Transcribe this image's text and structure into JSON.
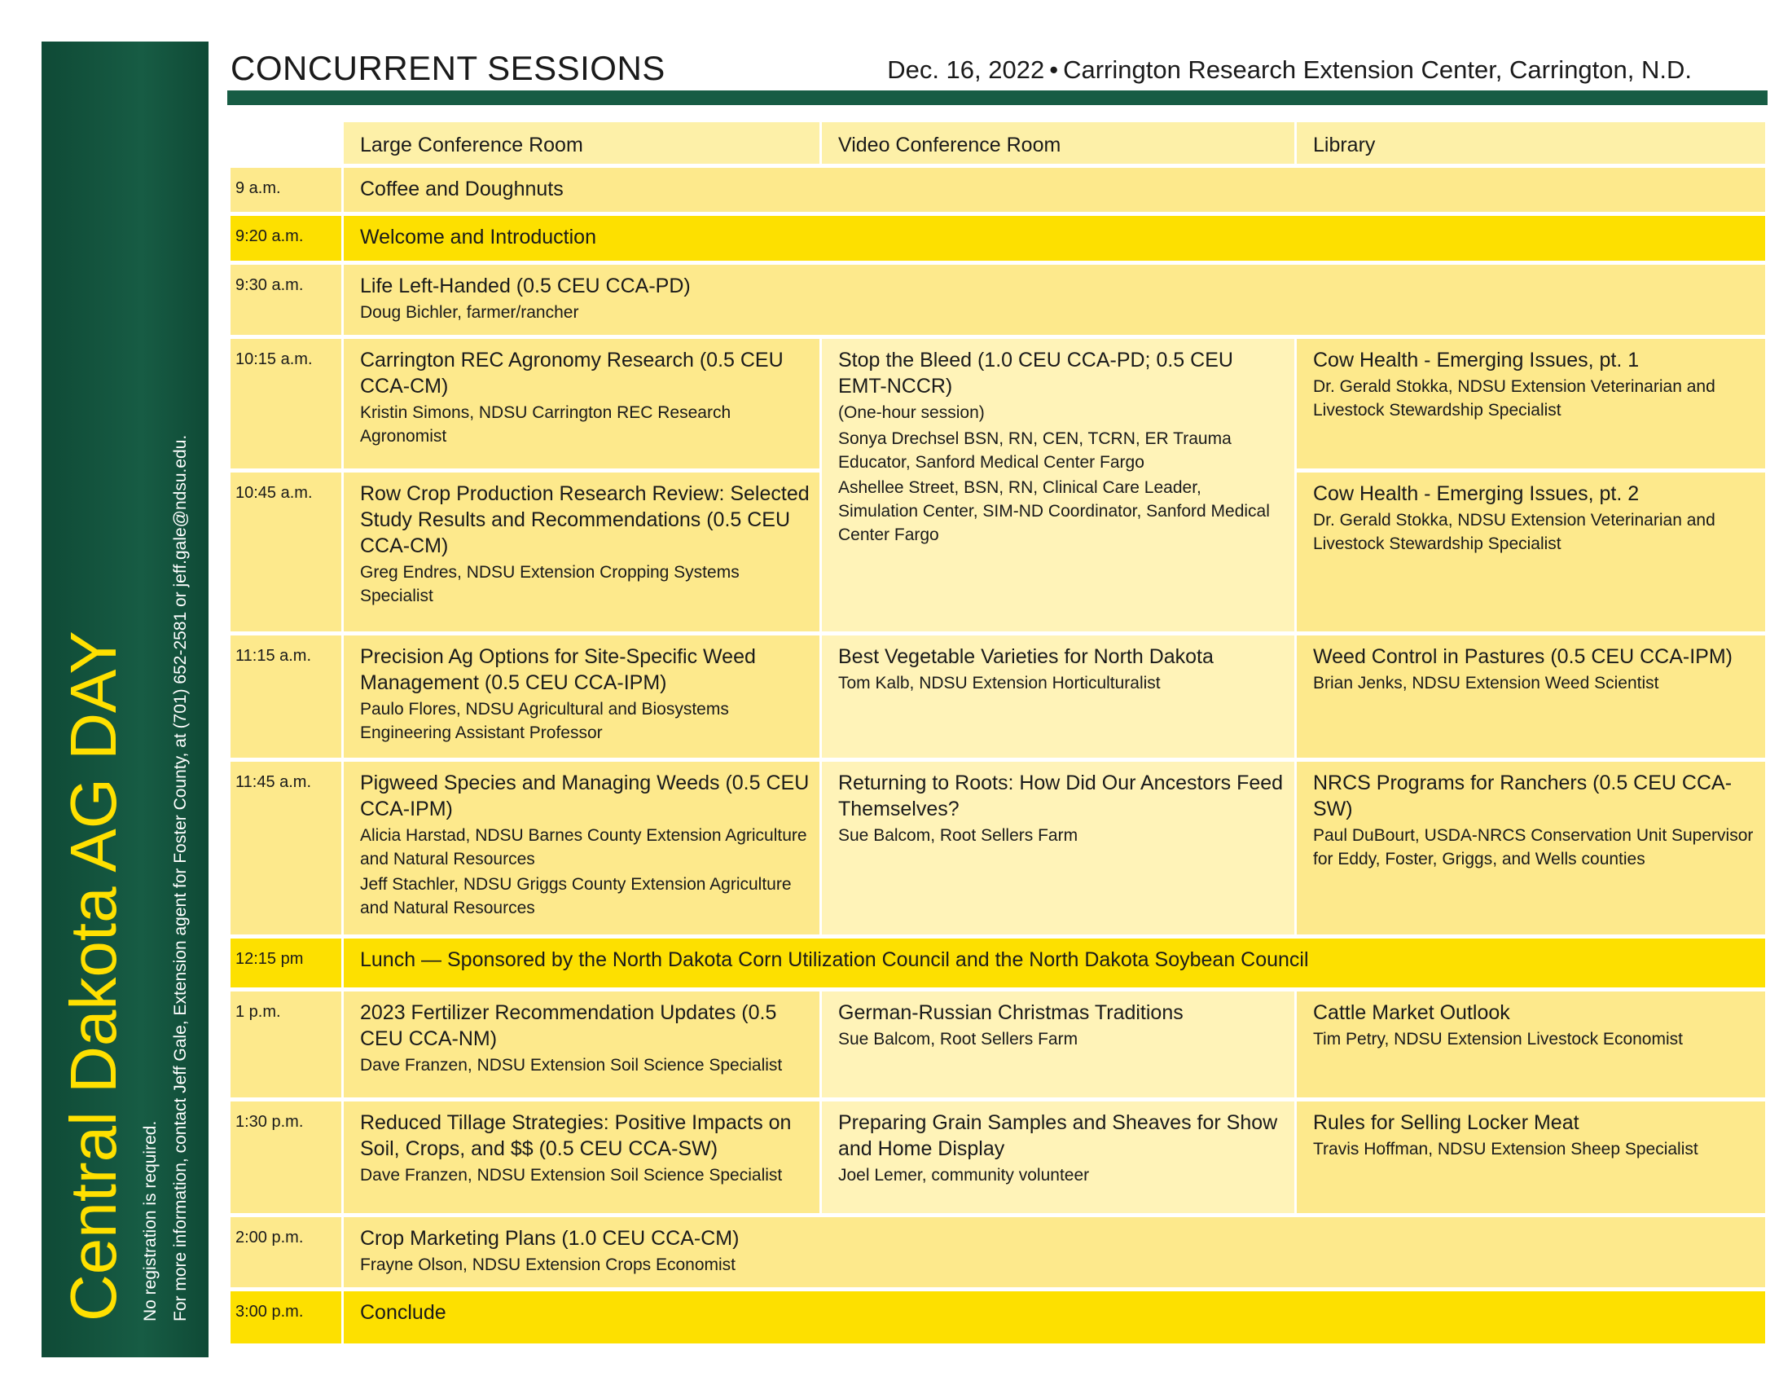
{
  "sidebar": {
    "title": "Central Dakota AG DAY",
    "notes": [
      "No registration is required.",
      "For more information, contact Jeff Gale, Extension agent for Foster  County, at (701) 652-2581 or jeff.gale@ndsu.edu."
    ]
  },
  "header": {
    "title": "CONCURRENT SESSIONS",
    "date": "Dec. 16, 2022",
    "separator": "•",
    "location": "Carrington Research Extension Center, Carrington, N.D."
  },
  "table": {
    "rooms": [
      "Large Conference Room",
      "Video Conference Room",
      "Library"
    ],
    "rows": [
      {
        "time": "9 a.m.",
        "sessions": [
          {
            "title": "Coffee and Doughnuts"
          }
        ]
      },
      {
        "time": "9:20 a.m.",
        "highlight": true,
        "sessions": [
          {
            "title": "Welcome and Introduction"
          }
        ]
      },
      {
        "time": "9:30 a.m.",
        "sessions": [
          {
            "title": "Life Left-Handed (0.5 CEU CCA-PD)",
            "speakers": [
              "Doug Bichler, farmer/rancher"
            ]
          }
        ]
      },
      {
        "time": "10:15 a.m.",
        "sessions": [
          {
            "title": "Carrington REC Agronomy Research (0.5 CEU CCA-CM)",
            "speakers": [
              "Kristin Simons, NDSU Carrington REC Research Agronomist"
            ]
          },
          {
            "title": "Stop the Bleed (1.0 CEU CCA-PD; 0.5 CEU EMT-NCCR)",
            "note": "(One-hour session)",
            "speakers": [
              "Sonya Drechsel BSN, RN, CEN, TCRN, ER Trauma Educator, Sanford Medical Center Fargo",
              "Ashellee Street, BSN, RN, Clinical Care Leader, Simulation Center, SIM-ND Coordinator, Sanford Medical Center Fargo"
            ]
          },
          {
            "title": "Cow Health - Emerging Issues, pt. 1",
            "speakers": [
              "Dr. Gerald Stokka, NDSU Extension Veterinarian and Livestock Stewardship Specialist"
            ]
          }
        ]
      },
      {
        "time": "10:45 a.m.",
        "sessions": [
          {
            "title": "Row Crop Production Research Review: Selected Study Results and Recommendations (0.5 CEU CCA-CM)",
            "speakers": [
              "Greg Endres, NDSU Extension Cropping Systems Specialist"
            ]
          },
          {
            "title": "Cow Health - Emerging Issues, pt. 2",
            "speakers": [
              "Dr. Gerald Stokka, NDSU Extension Veterinarian and Livestock Stewardship Specialist"
            ]
          }
        ]
      },
      {
        "time": "11:15 a.m.",
        "sessions": [
          {
            "title": "Precision Ag Options for Site-Specific Weed Management (0.5 CEU CCA-IPM)",
            "speakers": [
              "Paulo Flores, NDSU Agricultural and Biosystems Engineering Assistant Professor"
            ]
          },
          {
            "title": "Best Vegetable Varieties for North Dakota",
            "speakers": [
              "Tom Kalb, NDSU Extension Horticulturalist"
            ]
          },
          {
            "title": "Weed Control in Pastures (0.5 CEU CCA-IPM)",
            "speakers": [
              "Brian Jenks, NDSU Extension Weed Scientist"
            ]
          }
        ]
      },
      {
        "time": "11:45 a.m.",
        "sessions": [
          {
            "title": "Pigweed Species and Managing Weeds (0.5 CEU CCA-IPM)",
            "speakers": [
              "Alicia Harstad, NDSU Barnes County Extension Agriculture and Natural Resources",
              "Jeff Stachler, NDSU Griggs  County Extension Agriculture and Natural Resources"
            ]
          },
          {
            "title": "Returning to Roots: How Did Our Ancestors Feed Themselves?",
            "speakers": [
              "Sue Balcom, Root Sellers Farm"
            ]
          },
          {
            "title": "NRCS Programs for Ranchers (0.5 CEU CCA-SW)",
            "speakers": [
              "Paul DuBourt, USDA-NRCS Conservation Unit Supervisor for Eddy, Foster, Griggs, and Wells counties"
            ]
          }
        ]
      },
      {
        "time": "12:15 pm",
        "highlight": true,
        "sessions": [
          {
            "title": "Lunch — Sponsored by the North Dakota Corn Utilization Council and the North Dakota Soybean Council"
          }
        ]
      },
      {
        "time": "1 p.m.",
        "sessions": [
          {
            "title": "2023 Fertilizer Recommendation Updates (0.5 CEU CCA-NM)",
            "speakers": [
              "Dave Franzen, NDSU Extension Soil Science Specialist"
            ]
          },
          {
            "title": "German-Russian Christmas Traditions",
            "speakers": [
              "Sue Balcom, Root Sellers Farm"
            ]
          },
          {
            "title": "Cattle Market Outlook",
            "speakers": [
              "Tim Petry, NDSU Extension Livestock Economist"
            ]
          }
        ]
      },
      {
        "time": "1:30 p.m.",
        "sessions": [
          {
            "title": "Reduced Tillage Strategies: Positive Impacts on Soil, Crops, and $$ (0.5 CEU CCA-SW)",
            "speakers": [
              "Dave Franzen, NDSU Extension Soil Science Specialist"
            ]
          },
          {
            "title": "Preparing Grain Samples and Sheaves for Show and Home Display",
            "speakers": [
              "Joel Lemer, community volunteer"
            ]
          },
          {
            "title": "Rules for Selling Locker Meat",
            "speakers": [
              "Travis Hoffman, NDSU Extension Sheep Specialist"
            ]
          }
        ]
      },
      {
        "time": "2:00 p.m.",
        "sessions": [
          {
            "title": "Crop Marketing Plans (1.0 CEU CCA-CM)",
            "speakers": [
              "Frayne Olson, NDSU Extension Crops Economist"
            ]
          }
        ]
      },
      {
        "time": "3:00 p.m.",
        "highlight": true,
        "sessions": [
          {
            "title": "Conclude"
          }
        ]
      }
    ]
  }
}
